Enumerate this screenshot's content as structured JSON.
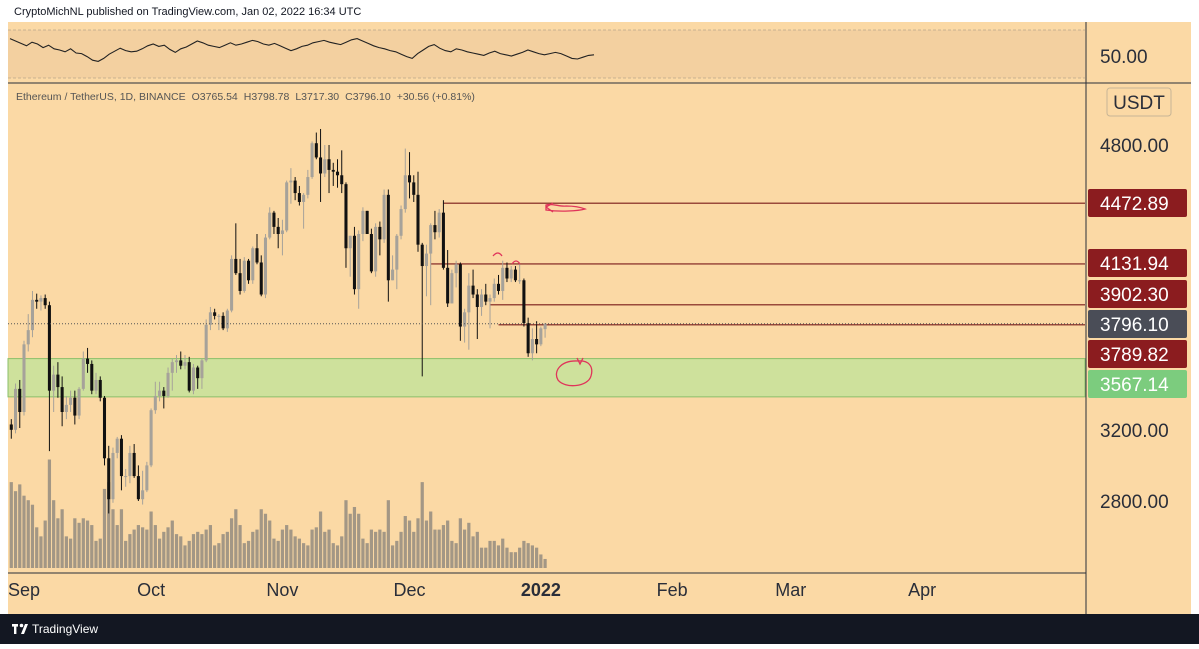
{
  "header": {
    "publisher": "CryptoMichNL published on TradingView.com, Jan 02, 2022 16:34 UTC"
  },
  "footer": {
    "brand": "TradingView"
  },
  "colors": {
    "background": "#fbd9a5",
    "rsi_band": "#f3d0a0",
    "candle_up": "#a6a29a",
    "candle_down": "#111111",
    "volume": "#a39785",
    "resistance_line": "#7a1a1a",
    "support_zone": "#c5e29a",
    "support_zone_border": "#8bbf6a",
    "tag_dark_red": "#8b1c1f",
    "tag_green": "#7ccc7e",
    "tag_price": "#4a4d57",
    "annotation": "#e0345a"
  },
  "icons": [
    "tradingview-logo-icon"
  ],
  "chart_data": {
    "type": "candlestick",
    "symbol_info": {
      "name": "Ethereum / TetherUS, 1D, BINANCE",
      "o_label": "O",
      "o": "3765.54",
      "h_label": "H",
      "h": "3798.78",
      "l_label": "L",
      "l": "3717.30",
      "c_label": "C",
      "c": "3796.10",
      "change": "+30.56 (+0.81%)"
    },
    "currency": "USDT",
    "ylim": [
      2550,
      5000
    ],
    "y_ticks": [
      {
        "value": 4800,
        "label": "4800.00"
      },
      {
        "value": 3200,
        "label": "3200.00"
      },
      {
        "value": 2800,
        "label": "2800.00"
      }
    ],
    "x_axis": {
      "start": "2021-09-01",
      "end": "2022-04-30",
      "labels": [
        {
          "date": "2021-09-01",
          "label": "Sep"
        },
        {
          "date": "2021-10-01",
          "label": "Oct"
        },
        {
          "date": "2021-11-01",
          "label": "Nov"
        },
        {
          "date": "2021-12-01",
          "label": "Dec"
        },
        {
          "date": "2022-01-01",
          "label": "2022"
        },
        {
          "date": "2022-02-01",
          "label": "Feb"
        },
        {
          "date": "2022-03-01",
          "label": "Mar"
        },
        {
          "date": "2022-04-01",
          "label": "Apr"
        }
      ]
    },
    "rsi": {
      "label": "50.00",
      "range": [
        0,
        100
      ],
      "band": [
        30,
        70
      ],
      "values": [
        69,
        65,
        61,
        57,
        63,
        60,
        54,
        58,
        52,
        50,
        47,
        52,
        45,
        44,
        39,
        33,
        31,
        36,
        43,
        48,
        53,
        49,
        47,
        48,
        52,
        57,
        60,
        56,
        58,
        51,
        46,
        52,
        55,
        60,
        65,
        62,
        58,
        56,
        54,
        58,
        62,
        58,
        60,
        63,
        66,
        64,
        60,
        58,
        61,
        57,
        53,
        49,
        52,
        56,
        58,
        62,
        64,
        66,
        63,
        61,
        59,
        63,
        67,
        69,
        65,
        61,
        57,
        54,
        52,
        49,
        47,
        43,
        39,
        36,
        44,
        50,
        56,
        59,
        53,
        49,
        47,
        52,
        50,
        47,
        45,
        43,
        41,
        45,
        48,
        44,
        42,
        40,
        43,
        46,
        50,
        47,
        44,
        42,
        44,
        46,
        44,
        40,
        36,
        35,
        38,
        41,
        42
      ]
    },
    "levels": [
      {
        "price": 4472.89,
        "label": "4472.89",
        "style": "dark-red",
        "from": "2021-12-09"
      },
      {
        "price": 4131.94,
        "label": "4131.94",
        "style": "dark-red",
        "from": "2021-12-06"
      },
      {
        "price": 3902.3,
        "label": "3902.30",
        "style": "dark-red",
        "from": "2021-12-20"
      },
      {
        "price": 3789.82,
        "label": "3789.82",
        "style": "dark-red",
        "from": "2021-12-22"
      },
      {
        "price": 3796.1,
        "label": "3796.10",
        "style": "price"
      },
      {
        "price": 3567.14,
        "label": "3567.14",
        "style": "green"
      }
    ],
    "support_zone": {
      "top": 3600,
      "bottom": 3385
    },
    "candles": [
      [
        "2021-08-29",
        3230,
        3260,
        3150,
        3200,
        38
      ],
      [
        "2021-08-30",
        3200,
        3460,
        3180,
        3430,
        34
      ],
      [
        "2021-08-31",
        3430,
        3480,
        3210,
        3300,
        37
      ],
      [
        "2021-09-01",
        3300,
        3700,
        3280,
        3680,
        32
      ],
      [
        "2021-09-02",
        3680,
        3850,
        3640,
        3760,
        30
      ],
      [
        "2021-09-03",
        3760,
        3980,
        3720,
        3930,
        28
      ],
      [
        "2021-09-04",
        3930,
        3965,
        3880,
        3920,
        18
      ],
      [
        "2021-09-05",
        3920,
        3955,
        3870,
        3940,
        14
      ],
      [
        "2021-09-06",
        3940,
        3960,
        3880,
        3900,
        21
      ],
      [
        "2021-09-07",
        3900,
        3920,
        3080,
        3420,
        48
      ],
      [
        "2021-09-08",
        3420,
        3560,
        3300,
        3510,
        30
      ],
      [
        "2021-09-09",
        3510,
        3580,
        3380,
        3440,
        22
      ],
      [
        "2021-09-10",
        3440,
        3500,
        3220,
        3300,
        26
      ],
      [
        "2021-09-11",
        3300,
        3390,
        3260,
        3340,
        14
      ],
      [
        "2021-09-12",
        3340,
        3420,
        3300,
        3380,
        13
      ],
      [
        "2021-09-13",
        3380,
        3420,
        3230,
        3280,
        22
      ],
      [
        "2021-09-14",
        3280,
        3440,
        3260,
        3430,
        20
      ],
      [
        "2021-09-15",
        3430,
        3640,
        3420,
        3600,
        22
      ],
      [
        "2021-09-16",
        3600,
        3660,
        3520,
        3570,
        21
      ],
      [
        "2021-09-17",
        3570,
        3590,
        3400,
        3420,
        19
      ],
      [
        "2021-09-18",
        3420,
        3520,
        3400,
        3480,
        12
      ],
      [
        "2021-09-19",
        3480,
        3500,
        3360,
        3380,
        13
      ],
      [
        "2021-09-20",
        3380,
        3390,
        3000,
        3040,
        35
      ],
      [
        "2021-09-21",
        3040,
        3110,
        2730,
        2810,
        38
      ],
      [
        "2021-09-22",
        2810,
        3100,
        2790,
        3070,
        26
      ],
      [
        "2021-09-23",
        3070,
        3160,
        3040,
        3150,
        19
      ],
      [
        "2021-09-24",
        3150,
        3170,
        2860,
        2940,
        26
      ],
      [
        "2021-09-25",
        2940,
        2980,
        2880,
        2940,
        12
      ],
      [
        "2021-09-26",
        2940,
        3110,
        2900,
        3070,
        15
      ],
      [
        "2021-09-27",
        3070,
        3120,
        2930,
        2940,
        17
      ],
      [
        "2021-09-28",
        2940,
        3000,
        2800,
        2810,
        19
      ],
      [
        "2021-09-29",
        2810,
        2970,
        2780,
        2860,
        18
      ],
      [
        "2021-09-30",
        2860,
        3020,
        2850,
        3000,
        17
      ],
      [
        "2021-10-01",
        3000,
        3320,
        2990,
        3310,
        25
      ],
      [
        "2021-10-02",
        3310,
        3470,
        3290,
        3390,
        19
      ],
      [
        "2021-10-03",
        3390,
        3470,
        3360,
        3420,
        13
      ],
      [
        "2021-10-04",
        3420,
        3440,
        3320,
        3390,
        16
      ],
      [
        "2021-10-05",
        3390,
        3550,
        3380,
        3520,
        18
      ],
      [
        "2021-10-06",
        3520,
        3600,
        3420,
        3580,
        21
      ],
      [
        "2021-10-07",
        3580,
        3620,
        3520,
        3590,
        15
      ],
      [
        "2021-10-08",
        3590,
        3640,
        3540,
        3560,
        14
      ],
      [
        "2021-10-09",
        3560,
        3620,
        3540,
        3580,
        10
      ],
      [
        "2021-10-10",
        3580,
        3610,
        3410,
        3420,
        12
      ],
      [
        "2021-10-11",
        3420,
        3570,
        3400,
        3550,
        15
      ],
      [
        "2021-10-12",
        3550,
        3560,
        3430,
        3490,
        16
      ],
      [
        "2021-10-13",
        3490,
        3600,
        3430,
        3590,
        15
      ],
      [
        "2021-10-14",
        3590,
        3820,
        3580,
        3790,
        17
      ],
      [
        "2021-10-15",
        3790,
        3890,
        3760,
        3860,
        19
      ],
      [
        "2021-10-16",
        3860,
        3880,
        3820,
        3840,
        10
      ],
      [
        "2021-10-17",
        3840,
        3850,
        3760,
        3840,
        11
      ],
      [
        "2021-10-18",
        3840,
        3860,
        3760,
        3770,
        15
      ],
      [
        "2021-10-19",
        3770,
        3880,
        3750,
        3870,
        16
      ],
      [
        "2021-10-20",
        3870,
        4180,
        3860,
        4160,
        22
      ],
      [
        "2021-10-21",
        4160,
        4360,
        4070,
        4080,
        26
      ],
      [
        "2021-10-22",
        4080,
        4160,
        3960,
        3980,
        19
      ],
      [
        "2021-10-23",
        3980,
        4170,
        3970,
        4150,
        11
      ],
      [
        "2021-10-24",
        4150,
        4160,
        4020,
        4040,
        12
      ],
      [
        "2021-10-25",
        4040,
        4230,
        4020,
        4220,
        16
      ],
      [
        "2021-10-26",
        4220,
        4300,
        4130,
        4140,
        17
      ],
      [
        "2021-10-27",
        4140,
        4180,
        3950,
        3960,
        26
      ],
      [
        "2021-10-28",
        3960,
        4300,
        3940,
        4280,
        24
      ],
      [
        "2021-10-29",
        4280,
        4450,
        4270,
        4420,
        21
      ],
      [
        "2021-10-30",
        4420,
        4430,
        4300,
        4340,
        13
      ],
      [
        "2021-10-31",
        4340,
        4390,
        4220,
        4300,
        12
      ],
      [
        "2021-11-01",
        4300,
        4380,
        4180,
        4320,
        17
      ],
      [
        "2021-11-02",
        4320,
        4600,
        4310,
        4590,
        19
      ],
      [
        "2021-11-03",
        4590,
        4670,
        4470,
        4600,
        17
      ],
      [
        "2021-11-04",
        4600,
        4620,
        4490,
        4530,
        14
      ],
      [
        "2021-11-05",
        4530,
        4570,
        4460,
        4480,
        13
      ],
      [
        "2021-11-06",
        4480,
        4530,
        4330,
        4520,
        11
      ],
      [
        "2021-11-07",
        4520,
        4660,
        4500,
        4620,
        10
      ],
      [
        "2021-11-08",
        4620,
        4820,
        4610,
        4810,
        17
      ],
      [
        "2021-11-09",
        4810,
        4870,
        4720,
        4730,
        18
      ],
      [
        "2021-11-10",
        4730,
        4890,
        4480,
        4640,
        25
      ],
      [
        "2021-11-11",
        4640,
        4800,
        4620,
        4720,
        16
      ],
      [
        "2021-11-12",
        4720,
        4800,
        4530,
        4660,
        17
      ],
      [
        "2021-11-13",
        4660,
        4700,
        4570,
        4650,
        11
      ],
      [
        "2021-11-14",
        4650,
        4720,
        4560,
        4630,
        10
      ],
      [
        "2021-11-15",
        4630,
        4770,
        4530,
        4580,
        14
      ],
      [
        "2021-11-16",
        4580,
        4590,
        4110,
        4220,
        30
      ],
      [
        "2021-11-17",
        4220,
        4290,
        4060,
        4290,
        24
      ],
      [
        "2021-11-18",
        4290,
        4340,
        3960,
        3990,
        27
      ],
      [
        "2021-11-19",
        3990,
        4320,
        3880,
        4300,
        24
      ],
      [
        "2021-11-20",
        4300,
        4450,
        4260,
        4430,
        13
      ],
      [
        "2021-11-21",
        4430,
        4430,
        4300,
        4300,
        11
      ],
      [
        "2021-11-22",
        4300,
        4330,
        4080,
        4090,
        17
      ],
      [
        "2021-11-23",
        4090,
        4360,
        4060,
        4340,
        16
      ],
      [
        "2021-11-24",
        4340,
        4370,
        4180,
        4270,
        17
      ],
      [
        "2021-11-25",
        4270,
        4550,
        4250,
        4520,
        16
      ],
      [
        "2021-11-26",
        4520,
        4550,
        3920,
        4040,
        30
      ],
      [
        "2021-11-27",
        4040,
        4180,
        4040,
        4100,
        10
      ],
      [
        "2021-11-28",
        4100,
        4300,
        3990,
        4290,
        12
      ],
      [
        "2021-11-29",
        4290,
        4460,
        4270,
        4440,
        16
      ],
      [
        "2021-11-30",
        4440,
        4780,
        4420,
        4630,
        23
      ],
      [
        "2021-12-01",
        4630,
        4760,
        4500,
        4590,
        21
      ],
      [
        "2021-12-02",
        4590,
        4630,
        4480,
        4520,
        16
      ],
      [
        "2021-12-03",
        4520,
        4650,
        4200,
        4240,
        22
      ],
      [
        "2021-12-04",
        4240,
        4250,
        3500,
        4120,
        38
      ],
      [
        "2021-12-05",
        4120,
        4240,
        3950,
        4190,
        21
      ],
      [
        "2021-12-06",
        4190,
        4360,
        3900,
        4350,
        25
      ],
      [
        "2021-12-07",
        4350,
        4430,
        4270,
        4310,
        17
      ],
      [
        "2021-12-08",
        4310,
        4440,
        4280,
        4420,
        17
      ],
      [
        "2021-12-09",
        4420,
        4490,
        4100,
        4110,
        19
      ],
      [
        "2021-12-10",
        4110,
        4210,
        3890,
        3910,
        21
      ],
      [
        "2021-12-11",
        3910,
        4100,
        3910,
        4080,
        12
      ],
      [
        "2021-12-12",
        4080,
        4150,
        4000,
        4130,
        11
      ],
      [
        "2021-12-13",
        4130,
        4140,
        3700,
        3780,
        22
      ],
      [
        "2021-12-14",
        3780,
        3880,
        3690,
        3860,
        17
      ],
      [
        "2021-12-15",
        3860,
        4080,
        3650,
        4010,
        20
      ],
      [
        "2021-12-16",
        4010,
        4100,
        3940,
        3960,
        14
      ],
      [
        "2021-12-17",
        3960,
        3990,
        3710,
        3890,
        16
      ],
      [
        "2021-12-18",
        3890,
        3990,
        3840,
        3960,
        9
      ],
      [
        "2021-12-19",
        3960,
        4020,
        3900,
        3920,
        9
      ],
      [
        "2021-12-20",
        3920,
        3960,
        3770,
        3940,
        12
      ],
      [
        "2021-12-21",
        3940,
        4050,
        3920,
        4020,
        12
      ],
      [
        "2021-12-22",
        4020,
        4070,
        3960,
        3980,
        10
      ],
      [
        "2021-12-23",
        3980,
        4150,
        3930,
        4110,
        13
      ],
      [
        "2021-12-24",
        4110,
        4140,
        4030,
        4050,
        9
      ],
      [
        "2021-12-25",
        4050,
        4120,
        4030,
        4100,
        7
      ],
      [
        "2021-12-26",
        4100,
        4120,
        4030,
        4040,
        7
      ],
      [
        "2021-12-27",
        4040,
        4130,
        4020,
        4040,
        9
      ],
      [
        "2021-12-28",
        4040,
        4050,
        3780,
        3800,
        12
      ],
      [
        "2021-12-29",
        3800,
        3830,
        3610,
        3630,
        11
      ],
      [
        "2021-12-30",
        3630,
        3770,
        3590,
        3710,
        10
      ],
      [
        "2021-12-31",
        3710,
        3810,
        3630,
        3680,
        9
      ],
      [
        "2022-01-01",
        3680,
        3780,
        3670,
        3770,
        6
      ],
      [
        "2022-01-02",
        3765.54,
        3798.78,
        3717.3,
        3796.1,
        4
      ]
    ]
  }
}
